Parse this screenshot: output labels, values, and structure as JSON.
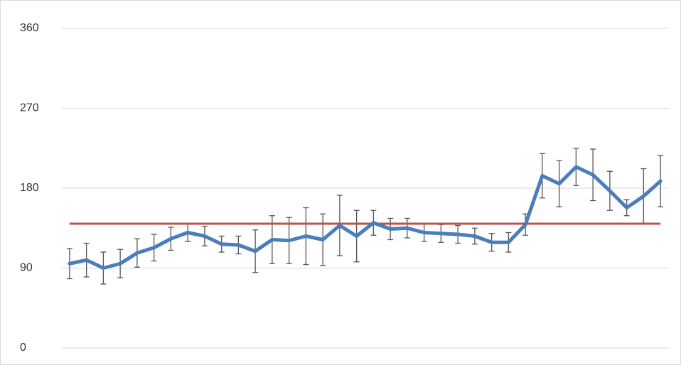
{
  "chart_data": {
    "type": "line",
    "categories": [
      null,
      null,
      null,
      null,
      null,
      null,
      null,
      null,
      null,
      null,
      null,
      null,
      null,
      null,
      null,
      null,
      null,
      null,
      null,
      null,
      null,
      null,
      null,
      null,
      null,
      null,
      null,
      null,
      null,
      null,
      null,
      null,
      null,
      null,
      null,
      null
    ],
    "values": [
      95,
      99,
      90,
      95,
      107,
      113,
      123,
      130,
      126,
      117,
      116,
      109,
      122,
      121,
      126,
      122,
      138,
      126,
      141,
      134,
      135,
      130,
      129,
      128,
      126,
      119,
      119,
      139,
      194,
      185,
      204,
      195,
      177,
      158,
      171,
      188
    ],
    "errors": [
      17,
      19,
      18,
      16,
      16,
      15,
      13,
      10,
      11,
      9,
      10,
      24,
      27,
      26,
      32,
      29,
      34,
      29,
      14,
      12,
      11,
      10,
      10,
      10,
      9,
      10,
      11,
      12,
      25,
      26,
      21,
      29,
      22,
      9,
      31,
      29
    ],
    "color": "#4a7ebb",
    "error_color": "#555555",
    "reference_line": {
      "value": 140,
      "color": "#c0504d"
    },
    "ylim": [
      0,
      360
    ],
    "yticks": [
      0,
      90,
      180,
      270,
      360
    ],
    "grid": true
  }
}
